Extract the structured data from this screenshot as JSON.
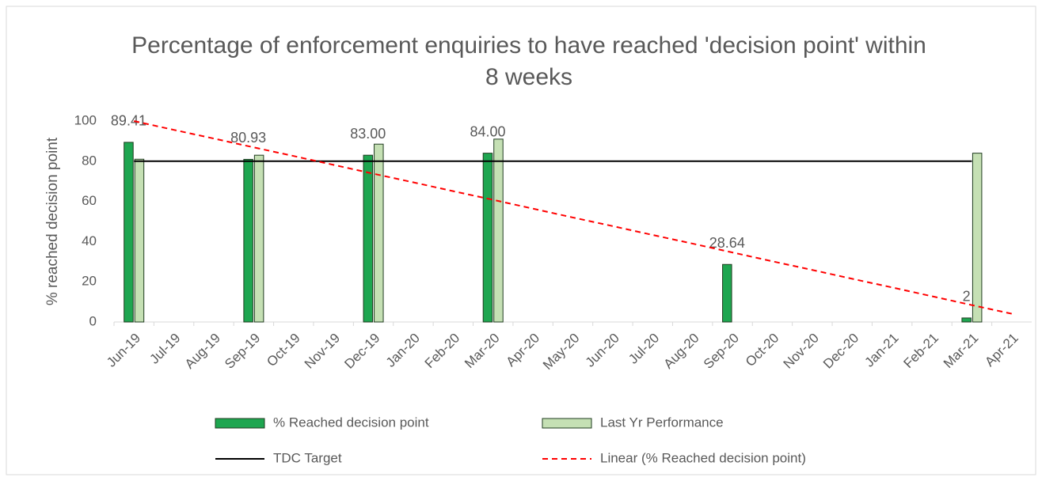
{
  "chart_data": {
    "type": "bar",
    "title": "Percentage of enforcement enquiries to have reached 'decision point' within 8 weeks",
    "y_label": "% reached decision point",
    "categories": [
      "Jun-19",
      "Jul-19",
      "Aug-19",
      "Sep-19",
      "Oct-19",
      "Nov-19",
      "Dec-19",
      "Jan-20",
      "Feb-20",
      "Mar-20",
      "Apr-20",
      "May-20",
      "Jun-20",
      "Jul-20",
      "Aug-20",
      "Sep-20",
      "Oct-20",
      "Nov-20",
      "Dec-20",
      "Jan-21",
      "Feb-21",
      "Mar-21",
      "Apr-21"
    ],
    "series": [
      {
        "name": "% Reached decision point",
        "type": "bar",
        "color": "#1ea650",
        "values": [
          89.41,
          null,
          null,
          80.93,
          null,
          null,
          83,
          null,
          null,
          84,
          null,
          null,
          null,
          null,
          null,
          28.64,
          null,
          null,
          null,
          null,
          null,
          2,
          null
        ],
        "value_labels": [
          "89.41",
          null,
          null,
          "80.93",
          null,
          null,
          "83.00",
          null,
          null,
          "84.00",
          null,
          null,
          null,
          null,
          null,
          "28.64",
          null,
          null,
          null,
          null,
          null,
          "2",
          null
        ]
      },
      {
        "name": "Last Yr Performance",
        "type": "bar",
        "color": "#c5e0b4",
        "values": [
          81,
          null,
          null,
          83,
          null,
          null,
          88.5,
          null,
          null,
          91,
          null,
          null,
          null,
          null,
          null,
          null,
          null,
          null,
          null,
          null,
          null,
          84,
          null
        ]
      },
      {
        "name": "TDC Target",
        "type": "line",
        "color": "#000000",
        "dash": false,
        "values": [
          80,
          80,
          80,
          80,
          80,
          80,
          80,
          80,
          80,
          80,
          80,
          80,
          80,
          80,
          80,
          80,
          80,
          80,
          80,
          80,
          80,
          80,
          null
        ]
      },
      {
        "name": "Linear (% Reached decision point)",
        "type": "line",
        "color": "#ff0000",
        "dash": true,
        "values": [
          100,
          95.6,
          91.3,
          86.9,
          82.6,
          78.2,
          73.8,
          69.5,
          65.1,
          60.8,
          56.4,
          52.0,
          47.7,
          43.3,
          39.0,
          34.6,
          30.2,
          25.9,
          21.5,
          17.2,
          12.8,
          8.4,
          4.1
        ]
      }
    ],
    "ylim": [
      0,
      100
    ],
    "yticks": [
      0,
      20,
      40,
      60,
      80,
      100
    ],
    "grid": false
  }
}
